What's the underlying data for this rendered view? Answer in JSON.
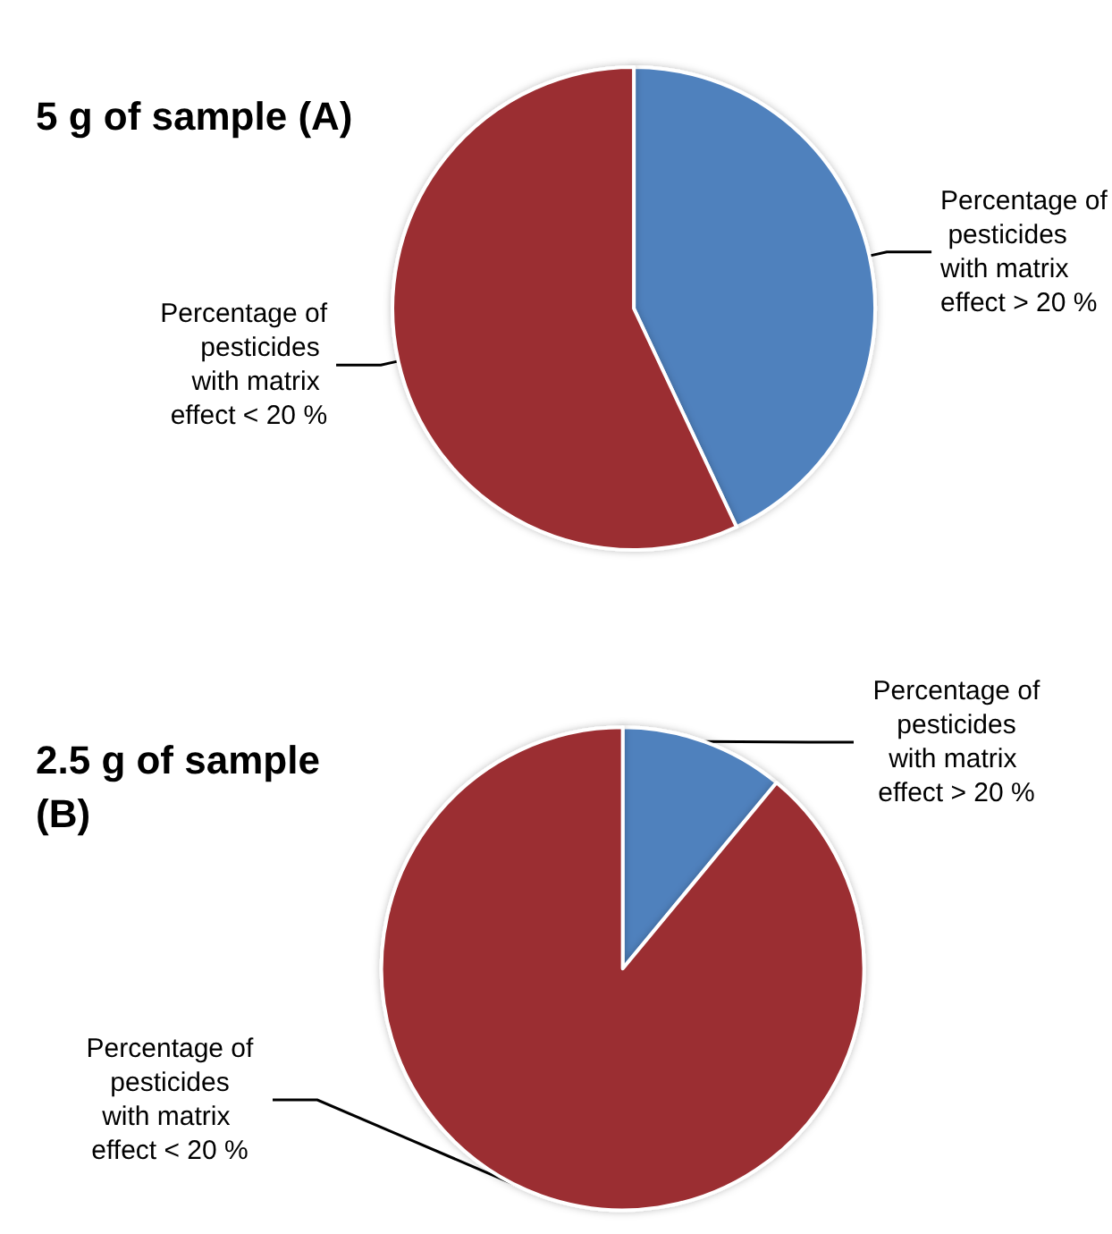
{
  "chart_data": [
    {
      "type": "pie",
      "title": "5 g of sample (A)",
      "categories": [
        "Percentage of pesticides with matrix effect > 20 %",
        "Percentage of pesticides with matrix effect < 20 %"
      ],
      "values": [
        43,
        57
      ],
      "colors": [
        "#4f81bd",
        "#9b2d30"
      ],
      "legend": false
    },
    {
      "type": "pie",
      "title": "2.5 g of sample (B)",
      "categories": [
        "Percentage of pesticides with matrix effect > 20 %",
        "Percentage of pesticides with matrix effect < 20 %"
      ],
      "values": [
        11,
        89
      ],
      "colors": [
        "#4f81bd",
        "#9b2d30"
      ],
      "legend": false
    }
  ]
}
